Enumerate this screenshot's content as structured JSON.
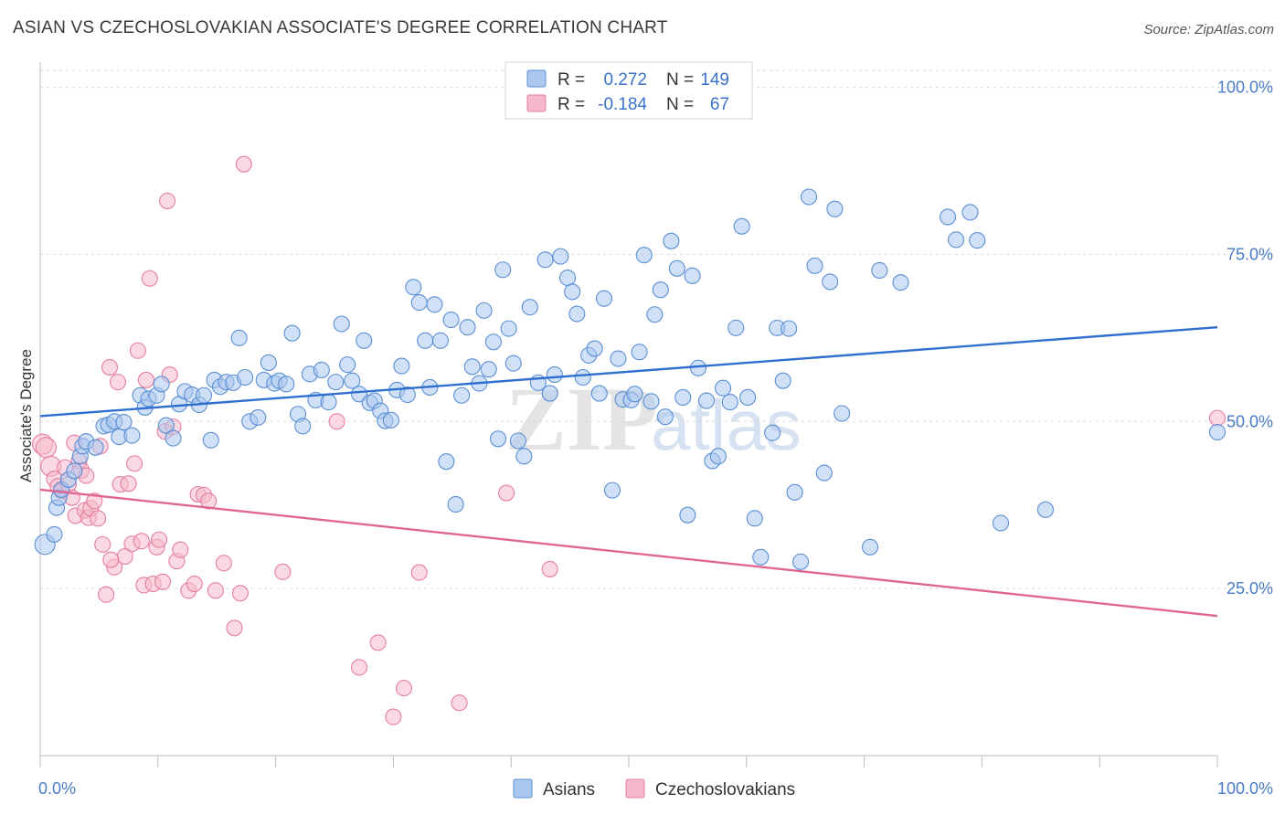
{
  "title": "ASIAN VS CZECHOSLOVAKIAN ASSOCIATE'S DEGREE CORRELATION CHART",
  "source": "Source: ZipAtlas.com",
  "watermark": {
    "part1": "ZIP",
    "part2": "atlas"
  },
  "colors": {
    "asian_fill": "#a9c7ef",
    "asian_stroke": "#5b8fd4",
    "asian_line": "#2f6fcf",
    "czech_fill": "#f5b9cb",
    "czech_stroke": "#e57ea0",
    "czech_line": "#e06593",
    "tick_text": "#4a7cc7",
    "grid": "#d9d9d9"
  },
  "legend": {
    "rows": [
      {
        "r_label": "R =",
        "r_value": "0.272",
        "n_label": "N =",
        "n_value": "149"
      },
      {
        "r_label": "R =",
        "r_value": "-0.184",
        "n_label": "N =",
        "n_value": "67"
      }
    ]
  },
  "bottom_legend": [
    "Asians",
    "Czechoslovakians"
  ],
  "chart_data": {
    "type": "scatter",
    "title": "ASIAN VS CZECHOSLOVAKIAN ASSOCIATE'S DEGREE CORRELATION CHART",
    "xlabel": "",
    "ylabel": "Associate's Degree",
    "xlim": [
      0,
      100
    ],
    "ylim": [
      0,
      105
    ],
    "x_tick_labels": [
      "0.0%",
      "100.0%"
    ],
    "y_ticks": [
      25,
      50,
      75,
      100
    ],
    "y_tick_labels": [
      "25.0%",
      "50.0%",
      "75.0%",
      "100.0%"
    ],
    "grid": true,
    "series": [
      {
        "name": "Asians",
        "R": 0.272,
        "N": 149,
        "trend": {
          "x0": 0,
          "y0": 50.8,
          "x1": 100,
          "y1": 64.1
        },
        "points": [
          [
            0.4,
            31.6
          ],
          [
            1.2,
            33.1
          ],
          [
            1.4,
            37.1
          ],
          [
            1.6,
            38.6
          ],
          [
            1.8,
            39.8
          ],
          [
            2.4,
            41.3
          ],
          [
            2.9,
            42.6
          ],
          [
            3.4,
            44.8
          ],
          [
            3.6,
            46.3
          ],
          [
            3.9,
            47.0
          ],
          [
            4.7,
            46.1
          ],
          [
            5.4,
            49.3
          ],
          [
            5.8,
            49.5
          ],
          [
            6.3,
            50.0
          ],
          [
            6.7,
            47.7
          ],
          [
            7.1,
            49.9
          ],
          [
            7.8,
            47.9
          ],
          [
            8.5,
            53.9
          ],
          [
            8.9,
            52.1
          ],
          [
            9.2,
            53.4
          ],
          [
            9.9,
            53.9
          ],
          [
            10.3,
            55.6
          ],
          [
            10.7,
            49.4
          ],
          [
            11.3,
            47.5
          ],
          [
            11.8,
            52.6
          ],
          [
            12.3,
            54.5
          ],
          [
            12.9,
            54.0
          ],
          [
            13.5,
            52.5
          ],
          [
            13.9,
            53.9
          ],
          [
            14.5,
            47.2
          ],
          [
            14.8,
            56.2
          ],
          [
            15.3,
            55.2
          ],
          [
            15.8,
            55.9
          ],
          [
            16.4,
            55.8
          ],
          [
            16.9,
            62.5
          ],
          [
            17.4,
            56.6
          ],
          [
            17.8,
            50.0
          ],
          [
            18.5,
            50.6
          ],
          [
            19.0,
            56.2
          ],
          [
            19.4,
            58.8
          ],
          [
            19.9,
            55.7
          ],
          [
            20.3,
            56.1
          ],
          [
            20.9,
            55.6
          ],
          [
            21.4,
            63.2
          ],
          [
            21.9,
            51.1
          ],
          [
            22.3,
            49.3
          ],
          [
            22.9,
            57.1
          ],
          [
            23.4,
            53.2
          ],
          [
            23.9,
            57.7
          ],
          [
            24.5,
            52.9
          ],
          [
            25.1,
            55.9
          ],
          [
            25.6,
            64.6
          ],
          [
            26.1,
            58.5
          ],
          [
            26.5,
            56.1
          ],
          [
            27.1,
            54.1
          ],
          [
            27.5,
            62.1
          ],
          [
            28.0,
            52.8
          ],
          [
            28.4,
            53.1
          ],
          [
            28.9,
            51.6
          ],
          [
            29.3,
            50.1
          ],
          [
            29.8,
            50.2
          ],
          [
            30.3,
            54.7
          ],
          [
            30.7,
            58.3
          ],
          [
            31.2,
            54.0
          ],
          [
            31.7,
            70.1
          ],
          [
            32.2,
            67.8
          ],
          [
            32.7,
            62.1
          ],
          [
            33.1,
            55.1
          ],
          [
            33.5,
            67.5
          ],
          [
            34.0,
            62.1
          ],
          [
            34.5,
            44.0
          ],
          [
            34.9,
            65.2
          ],
          [
            35.3,
            37.6
          ],
          [
            35.8,
            53.9
          ],
          [
            36.3,
            64.1
          ],
          [
            36.7,
            58.2
          ],
          [
            37.3,
            55.7
          ],
          [
            37.7,
            66.6
          ],
          [
            38.1,
            57.8
          ],
          [
            38.5,
            61.9
          ],
          [
            38.9,
            47.4
          ],
          [
            39.3,
            72.7
          ],
          [
            39.8,
            63.9
          ],
          [
            40.2,
            58.7
          ],
          [
            40.6,
            47.1
          ],
          [
            41.1,
            44.8
          ],
          [
            41.6,
            67.1
          ],
          [
            42.3,
            55.8
          ],
          [
            42.9,
            74.2
          ],
          [
            43.3,
            54.2
          ],
          [
            43.7,
            57.0
          ],
          [
            44.2,
            74.7
          ],
          [
            44.8,
            71.5
          ],
          [
            45.2,
            69.4
          ],
          [
            45.6,
            66.1
          ],
          [
            46.1,
            56.6
          ],
          [
            46.6,
            59.9
          ],
          [
            47.1,
            60.9
          ],
          [
            47.5,
            54.2
          ],
          [
            47.9,
            68.4
          ],
          [
            48.6,
            39.7
          ],
          [
            49.1,
            59.4
          ],
          [
            49.5,
            53.3
          ],
          [
            50.2,
            53.2
          ],
          [
            50.5,
            54.1
          ],
          [
            50.9,
            60.4
          ],
          [
            51.3,
            74.9
          ],
          [
            51.9,
            53.0
          ],
          [
            52.2,
            66.0
          ],
          [
            52.7,
            69.7
          ],
          [
            53.1,
            50.7
          ],
          [
            53.6,
            77.0
          ],
          [
            54.1,
            72.9
          ],
          [
            54.6,
            53.6
          ],
          [
            55.0,
            36.0
          ],
          [
            55.4,
            71.8
          ],
          [
            55.9,
            58.0
          ],
          [
            56.6,
            53.1
          ],
          [
            57.1,
            44.1
          ],
          [
            57.6,
            44.8
          ],
          [
            58.0,
            55.0
          ],
          [
            58.6,
            52.9
          ],
          [
            59.1,
            64.0
          ],
          [
            59.6,
            79.2
          ],
          [
            60.1,
            53.6
          ],
          [
            60.7,
            35.5
          ],
          [
            61.2,
            29.7
          ],
          [
            62.2,
            48.3
          ],
          [
            62.6,
            64.0
          ],
          [
            63.1,
            56.1
          ],
          [
            63.6,
            63.9
          ],
          [
            64.1,
            39.4
          ],
          [
            64.6,
            29.0
          ],
          [
            65.3,
            83.6
          ],
          [
            65.8,
            73.3
          ],
          [
            66.6,
            42.3
          ],
          [
            67.1,
            70.9
          ],
          [
            67.5,
            81.8
          ],
          [
            68.1,
            51.2
          ],
          [
            70.5,
            31.2
          ],
          [
            71.3,
            72.6
          ],
          [
            73.1,
            70.8
          ],
          [
            77.1,
            80.6
          ],
          [
            77.8,
            77.2
          ],
          [
            79.0,
            81.3
          ],
          [
            81.6,
            34.8
          ],
          [
            85.4,
            36.8
          ],
          [
            100.0,
            48.4
          ],
          [
            79.6,
            77.1
          ]
        ]
      },
      {
        "name": "Czechoslovakians",
        "R": -0.184,
        "N": 67,
        "trend": {
          "x0": 0,
          "y0": 39.8,
          "x1": 100,
          "y1": 20.9
        },
        "points": [
          [
            0.2,
            46.6
          ],
          [
            0.5,
            46.1
          ],
          [
            0.9,
            43.3
          ],
          [
            1.2,
            41.4
          ],
          [
            1.5,
            40.3
          ],
          [
            1.8,
            39.6
          ],
          [
            2.1,
            43.1
          ],
          [
            2.4,
            40.6
          ],
          [
            2.7,
            38.6
          ],
          [
            3.0,
            35.9
          ],
          [
            3.3,
            44.1
          ],
          [
            3.5,
            42.7
          ],
          [
            3.8,
            36.7
          ],
          [
            4.1,
            35.6
          ],
          [
            4.3,
            37.0
          ],
          [
            4.6,
            38.1
          ],
          [
            4.9,
            35.5
          ],
          [
            5.1,
            46.3
          ],
          [
            5.3,
            31.6
          ],
          [
            5.6,
            24.1
          ],
          [
            5.9,
            58.1
          ],
          [
            6.3,
            28.2
          ],
          [
            6.6,
            55.9
          ],
          [
            6.8,
            40.6
          ],
          [
            7.2,
            29.8
          ],
          [
            7.5,
            40.7
          ],
          [
            7.8,
            31.7
          ],
          [
            8.0,
            43.7
          ],
          [
            8.3,
            60.6
          ],
          [
            8.6,
            32.1
          ],
          [
            8.8,
            25.5
          ],
          [
            9.0,
            56.2
          ],
          [
            9.3,
            71.4
          ],
          [
            9.6,
            25.7
          ],
          [
            9.9,
            31.2
          ],
          [
            10.1,
            32.3
          ],
          [
            10.4,
            26.0
          ],
          [
            10.6,
            48.5
          ],
          [
            10.8,
            83.0
          ],
          [
            11.0,
            57.0
          ],
          [
            11.3,
            49.2
          ],
          [
            11.6,
            29.1
          ],
          [
            11.9,
            30.8
          ],
          [
            12.6,
            24.7
          ],
          [
            13.1,
            25.7
          ],
          [
            13.4,
            39.1
          ],
          [
            13.9,
            39.0
          ],
          [
            14.3,
            38.1
          ],
          [
            14.9,
            24.7
          ],
          [
            15.6,
            28.8
          ],
          [
            16.5,
            19.1
          ],
          [
            17.0,
            24.3
          ],
          [
            17.3,
            88.5
          ],
          [
            20.6,
            27.5
          ],
          [
            25.2,
            50.0
          ],
          [
            27.1,
            13.2
          ],
          [
            28.7,
            16.9
          ],
          [
            30.0,
            5.8
          ],
          [
            30.9,
            10.1
          ],
          [
            32.2,
            27.4
          ],
          [
            35.6,
            7.9
          ],
          [
            39.6,
            39.3
          ],
          [
            43.3,
            27.9
          ],
          [
            100.0,
            50.5
          ],
          [
            6.0,
            29.3
          ],
          [
            3.9,
            41.9
          ],
          [
            2.9,
            46.8
          ]
        ]
      }
    ]
  }
}
